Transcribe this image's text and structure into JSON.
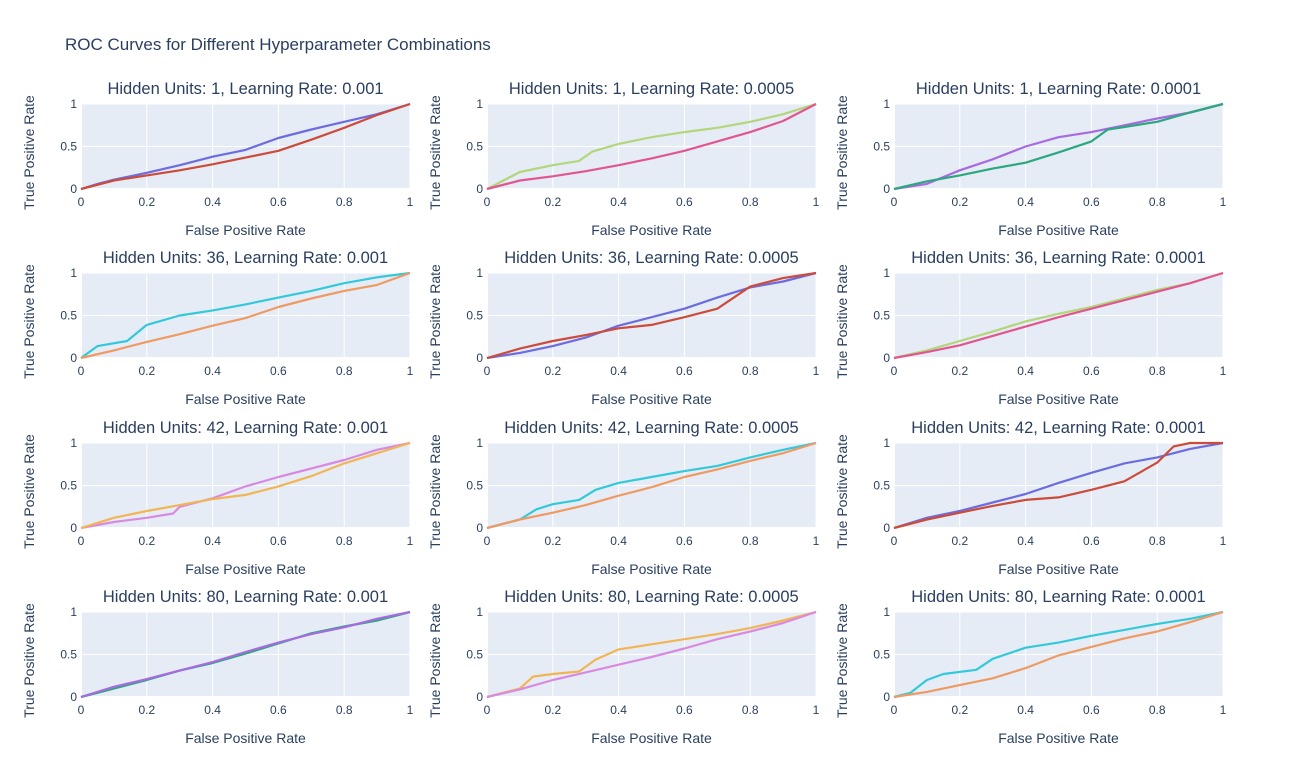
{
  "title": "ROC Curves for Different Hyperparameter Combinations",
  "chart_data": {
    "type": "line",
    "layout": {
      "rows": 4,
      "cols": 3
    },
    "plot_bgcolor": "#e5ecf6",
    "grid": true,
    "x_ticks": [
      "0",
      "0.2",
      "0.4",
      "0.6",
      "0.8",
      "1"
    ],
    "y_ticks": [
      "0",
      "0.5",
      "1"
    ],
    "subplots": [
      {
        "title": "Hidden Units: 1, Learning Rate: 0.001",
        "xlabel": "False Positive Rate",
        "ylabel": "True Positive Rate",
        "xlim": [
          0,
          1
        ],
        "ylim": [
          0,
          1
        ],
        "series": [
          {
            "color": "#6c6ce0",
            "x": [
              0,
              0.05,
              0.1,
              0.2,
              0.3,
              0.4,
              0.5,
              0.6,
              0.7,
              0.8,
              0.9,
              1
            ],
            "y": [
              0,
              0.06,
              0.11,
              0.19,
              0.28,
              0.38,
              0.46,
              0.6,
              0.7,
              0.79,
              0.88,
              1
            ]
          },
          {
            "color": "#cc4b3a",
            "x": [
              0,
              0.05,
              0.1,
              0.2,
              0.3,
              0.4,
              0.5,
              0.6,
              0.7,
              0.8,
              0.9,
              1
            ],
            "y": [
              0,
              0.05,
              0.1,
              0.16,
              0.22,
              0.29,
              0.37,
              0.45,
              0.58,
              0.72,
              0.87,
              1
            ]
          }
        ]
      },
      {
        "title": "Hidden Units: 1, Learning Rate: 0.0005",
        "xlabel": "False Positive Rate",
        "ylabel": "True Positive Rate",
        "xlim": [
          0,
          1
        ],
        "ylim": [
          0,
          1
        ],
        "series": [
          {
            "color": "#b2d67a",
            "x": [
              0,
              0.05,
              0.1,
              0.2,
              0.28,
              0.32,
              0.4,
              0.5,
              0.6,
              0.7,
              0.8,
              0.9,
              1
            ],
            "y": [
              0,
              0.1,
              0.2,
              0.28,
              0.33,
              0.44,
              0.53,
              0.61,
              0.67,
              0.72,
              0.79,
              0.88,
              1
            ]
          },
          {
            "color": "#e2568f",
            "x": [
              0,
              0.1,
              0.2,
              0.3,
              0.4,
              0.5,
              0.6,
              0.7,
              0.8,
              0.9,
              1
            ],
            "y": [
              0,
              0.1,
              0.15,
              0.21,
              0.28,
              0.36,
              0.45,
              0.56,
              0.67,
              0.8,
              1
            ]
          }
        ]
      },
      {
        "title": "Hidden Units: 1, Learning Rate: 0.0001",
        "xlabel": "False Positive Rate",
        "ylabel": "True Positive Rate",
        "xlim": [
          0,
          1
        ],
        "ylim": [
          0,
          1
        ],
        "series": [
          {
            "color": "#a76ae0",
            "x": [
              0,
              0.1,
              0.2,
              0.3,
              0.4,
              0.5,
              0.6,
              0.7,
              0.8,
              0.9,
              1
            ],
            "y": [
              0,
              0.06,
              0.22,
              0.35,
              0.5,
              0.61,
              0.67,
              0.75,
              0.83,
              0.9,
              1
            ]
          },
          {
            "color": "#2ca77e",
            "x": [
              0,
              0.1,
              0.2,
              0.3,
              0.4,
              0.5,
              0.6,
              0.65,
              0.7,
              0.8,
              0.9,
              1
            ],
            "y": [
              0,
              0.09,
              0.16,
              0.24,
              0.31,
              0.43,
              0.56,
              0.7,
              0.73,
              0.79,
              0.9,
              1
            ]
          }
        ]
      },
      {
        "title": "Hidden Units: 36, Learning Rate: 0.001",
        "xlabel": "False Positive Rate",
        "ylabel": "True Positive Rate",
        "xlim": [
          0,
          1
        ],
        "ylim": [
          0,
          1
        ],
        "series": [
          {
            "color": "#33c9d8",
            "x": [
              0,
              0.05,
              0.14,
              0.2,
              0.3,
              0.4,
              0.5,
              0.6,
              0.7,
              0.8,
              0.9,
              1
            ],
            "y": [
              0,
              0.14,
              0.2,
              0.39,
              0.5,
              0.56,
              0.63,
              0.71,
              0.79,
              0.88,
              0.95,
              1
            ]
          },
          {
            "color": "#ef9a63",
            "x": [
              0,
              0.1,
              0.2,
              0.3,
              0.4,
              0.5,
              0.6,
              0.7,
              0.8,
              0.9,
              1
            ],
            "y": [
              0,
              0.09,
              0.19,
              0.28,
              0.38,
              0.47,
              0.6,
              0.7,
              0.79,
              0.86,
              1
            ]
          }
        ]
      },
      {
        "title": "Hidden Units: 36, Learning Rate: 0.0005",
        "xlabel": "False Positive Rate",
        "ylabel": "True Positive Rate",
        "xlim": [
          0,
          1
        ],
        "ylim": [
          0,
          1
        ],
        "series": [
          {
            "color": "#6c6ce0",
            "x": [
              0,
              0.1,
              0.2,
              0.3,
              0.4,
              0.5,
              0.6,
              0.7,
              0.8,
              0.9,
              1
            ],
            "y": [
              0,
              0.06,
              0.14,
              0.24,
              0.38,
              0.48,
              0.58,
              0.71,
              0.83,
              0.9,
              1
            ]
          },
          {
            "color": "#cc4b3a",
            "x": [
              0,
              0.1,
              0.2,
              0.3,
              0.4,
              0.5,
              0.6,
              0.7,
              0.8,
              0.9,
              1
            ],
            "y": [
              0,
              0.11,
              0.2,
              0.27,
              0.35,
              0.39,
              0.48,
              0.58,
              0.84,
              0.94,
              1
            ]
          }
        ]
      },
      {
        "title": "Hidden Units: 36, Learning Rate: 0.0001",
        "xlabel": "False Positive Rate",
        "ylabel": "True Positive Rate",
        "xlim": [
          0,
          1
        ],
        "ylim": [
          0,
          1
        ],
        "series": [
          {
            "color": "#b2d67a",
            "x": [
              0,
              0.1,
              0.2,
              0.3,
              0.4,
              0.5,
              0.6,
              0.7,
              0.8,
              0.9,
              1
            ],
            "y": [
              0,
              0.09,
              0.2,
              0.31,
              0.43,
              0.52,
              0.6,
              0.7,
              0.8,
              0.88,
              1
            ]
          },
          {
            "color": "#e2568f",
            "x": [
              0,
              0.1,
              0.2,
              0.3,
              0.4,
              0.5,
              0.6,
              0.7,
              0.8,
              0.9,
              1
            ],
            "y": [
              0,
              0.07,
              0.15,
              0.26,
              0.37,
              0.48,
              0.58,
              0.68,
              0.78,
              0.88,
              1
            ]
          }
        ]
      },
      {
        "title": "Hidden Units: 42, Learning Rate: 0.001",
        "xlabel": "False Positive Rate",
        "ylabel": "True Positive Rate",
        "xlim": [
          0,
          1
        ],
        "ylim": [
          0,
          1
        ],
        "series": [
          {
            "color": "#d98ae0",
            "x": [
              0,
              0.1,
              0.2,
              0.28,
              0.3,
              0.4,
              0.5,
              0.6,
              0.7,
              0.8,
              0.9,
              1
            ],
            "y": [
              0,
              0.07,
              0.12,
              0.17,
              0.25,
              0.35,
              0.49,
              0.6,
              0.7,
              0.8,
              0.92,
              1
            ]
          },
          {
            "color": "#f2b555",
            "x": [
              0,
              0.1,
              0.2,
              0.3,
              0.4,
              0.5,
              0.6,
              0.7,
              0.8,
              0.9,
              1
            ],
            "y": [
              0,
              0.12,
              0.2,
              0.27,
              0.34,
              0.39,
              0.49,
              0.61,
              0.76,
              0.88,
              1
            ]
          }
        ]
      },
      {
        "title": "Hidden Units: 42, Learning Rate: 0.0005",
        "xlabel": "False Positive Rate",
        "ylabel": "True Positive Rate",
        "xlim": [
          0,
          1
        ],
        "ylim": [
          0,
          1
        ],
        "series": [
          {
            "color": "#33c9d8",
            "x": [
              0,
              0.1,
              0.15,
              0.2,
              0.28,
              0.33,
              0.4,
              0.5,
              0.6,
              0.7,
              0.8,
              0.9,
              1
            ],
            "y": [
              0,
              0.1,
              0.22,
              0.28,
              0.33,
              0.45,
              0.53,
              0.6,
              0.67,
              0.73,
              0.83,
              0.92,
              1
            ]
          },
          {
            "color": "#ef9a63",
            "x": [
              0,
              0.1,
              0.2,
              0.3,
              0.4,
              0.5,
              0.6,
              0.7,
              0.8,
              0.9,
              1
            ],
            "y": [
              0,
              0.1,
              0.18,
              0.27,
              0.38,
              0.48,
              0.6,
              0.69,
              0.79,
              0.88,
              1
            ]
          }
        ]
      },
      {
        "title": "Hidden Units: 42, Learning Rate: 0.0001",
        "xlabel": "False Positive Rate",
        "ylabel": "True Positive Rate",
        "xlim": [
          0,
          1
        ],
        "ylim": [
          0,
          1
        ],
        "series": [
          {
            "color": "#6c6ce0",
            "x": [
              0,
              0.1,
              0.2,
              0.3,
              0.4,
              0.5,
              0.6,
              0.7,
              0.8,
              0.9,
              1
            ],
            "y": [
              0,
              0.12,
              0.2,
              0.3,
              0.4,
              0.53,
              0.65,
              0.76,
              0.83,
              0.93,
              1
            ]
          },
          {
            "color": "#cc4b3a",
            "x": [
              0,
              0.1,
              0.2,
              0.3,
              0.4,
              0.5,
              0.6,
              0.7,
              0.8,
              0.85,
              0.9,
              1
            ],
            "y": [
              0,
              0.1,
              0.18,
              0.26,
              0.33,
              0.36,
              0.45,
              0.55,
              0.77,
              0.96,
              1,
              1
            ]
          }
        ]
      },
      {
        "title": "Hidden Units: 80, Learning Rate: 0.001",
        "xlabel": "False Positive Rate",
        "ylabel": "True Positive Rate",
        "xlim": [
          0,
          1
        ],
        "ylim": [
          0,
          1
        ],
        "series": [
          {
            "color": "#2ca77e",
            "x": [
              0,
              0.1,
              0.2,
              0.3,
              0.4,
              0.5,
              0.6,
              0.7,
              0.8,
              0.9,
              1
            ],
            "y": [
              0,
              0.1,
              0.2,
              0.31,
              0.4,
              0.51,
              0.63,
              0.75,
              0.83,
              0.9,
              1
            ]
          },
          {
            "color": "#a76ae0",
            "x": [
              0,
              0.1,
              0.2,
              0.3,
              0.4,
              0.5,
              0.6,
              0.7,
              0.8,
              0.9,
              1
            ],
            "y": [
              0,
              0.12,
              0.21,
              0.31,
              0.41,
              0.53,
              0.64,
              0.74,
              0.82,
              0.92,
              1
            ]
          }
        ]
      },
      {
        "title": "Hidden Units: 80, Learning Rate: 0.0005",
        "xlabel": "False Positive Rate",
        "ylabel": "True Positive Rate",
        "xlim": [
          0,
          1
        ],
        "ylim": [
          0,
          1
        ],
        "series": [
          {
            "color": "#f2b555",
            "x": [
              0,
              0.1,
              0.14,
              0.2,
              0.28,
              0.33,
              0.4,
              0.5,
              0.6,
              0.7,
              0.8,
              0.9,
              1
            ],
            "y": [
              0,
              0.1,
              0.24,
              0.27,
              0.3,
              0.44,
              0.56,
              0.62,
              0.68,
              0.74,
              0.81,
              0.9,
              1
            ]
          },
          {
            "color": "#d98ae0",
            "x": [
              0,
              0.1,
              0.2,
              0.3,
              0.4,
              0.5,
              0.6,
              0.7,
              0.8,
              0.9,
              1
            ],
            "y": [
              0,
              0.09,
              0.2,
              0.29,
              0.38,
              0.47,
              0.57,
              0.68,
              0.77,
              0.87,
              1
            ]
          }
        ]
      },
      {
        "title": "Hidden Units: 80, Learning Rate: 0.0001",
        "xlabel": "False Positive Rate",
        "ylabel": "True Positive Rate",
        "xlim": [
          0,
          1
        ],
        "ylim": [
          0,
          1
        ],
        "series": [
          {
            "color": "#33c9d8",
            "x": [
              0,
              0.05,
              0.1,
              0.15,
              0.25,
              0.3,
              0.4,
              0.5,
              0.6,
              0.7,
              0.8,
              0.9,
              1
            ],
            "y": [
              0,
              0.05,
              0.2,
              0.27,
              0.32,
              0.45,
              0.58,
              0.64,
              0.72,
              0.79,
              0.86,
              0.92,
              1
            ]
          },
          {
            "color": "#ef9a63",
            "x": [
              0,
              0.1,
              0.2,
              0.3,
              0.4,
              0.5,
              0.6,
              0.7,
              0.8,
              0.9,
              1
            ],
            "y": [
              0,
              0.06,
              0.14,
              0.22,
              0.34,
              0.49,
              0.59,
              0.69,
              0.77,
              0.88,
              1
            ]
          }
        ]
      }
    ]
  }
}
